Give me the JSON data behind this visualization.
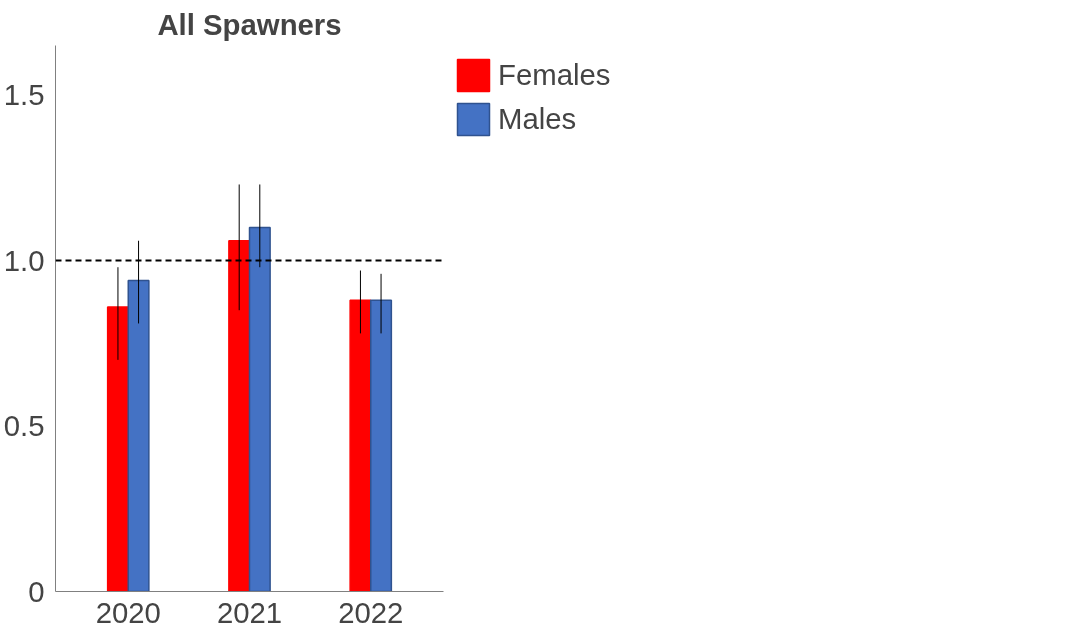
{
  "chart_data": {
    "type": "bar",
    "title": "All Spawners",
    "categories": [
      "2020",
      "2021",
      "2022"
    ],
    "series": [
      {
        "name": "Females",
        "color": "#ff0000",
        "values": [
          0.86,
          1.06,
          0.88
        ],
        "errors": [
          [
            0.7,
            0.98
          ],
          [
            0.85,
            1.23
          ],
          [
            0.78,
            0.97
          ]
        ]
      },
      {
        "name": "Males",
        "color": "#4472c4",
        "values": [
          0.94,
          1.1,
          0.88
        ],
        "errors": [
          [
            0.81,
            1.06
          ],
          [
            0.98,
            1.23
          ],
          [
            0.78,
            0.96
          ]
        ]
      }
    ],
    "ylim": [
      0,
      1.65
    ],
    "yticks": [
      0,
      {
        "value": 0.5,
        "label": "0.5"
      },
      {
        "value": 1,
        "label": "1.0"
      },
      {
        "value": 1.5,
        "label": "1.5"
      }
    ],
    "ref_lines": [
      {
        "axis": "y",
        "value": 1,
        "label": null,
        "color": "#000000",
        "line_style": "dashed"
      }
    ],
    "grid": false,
    "legend": "right"
  }
}
